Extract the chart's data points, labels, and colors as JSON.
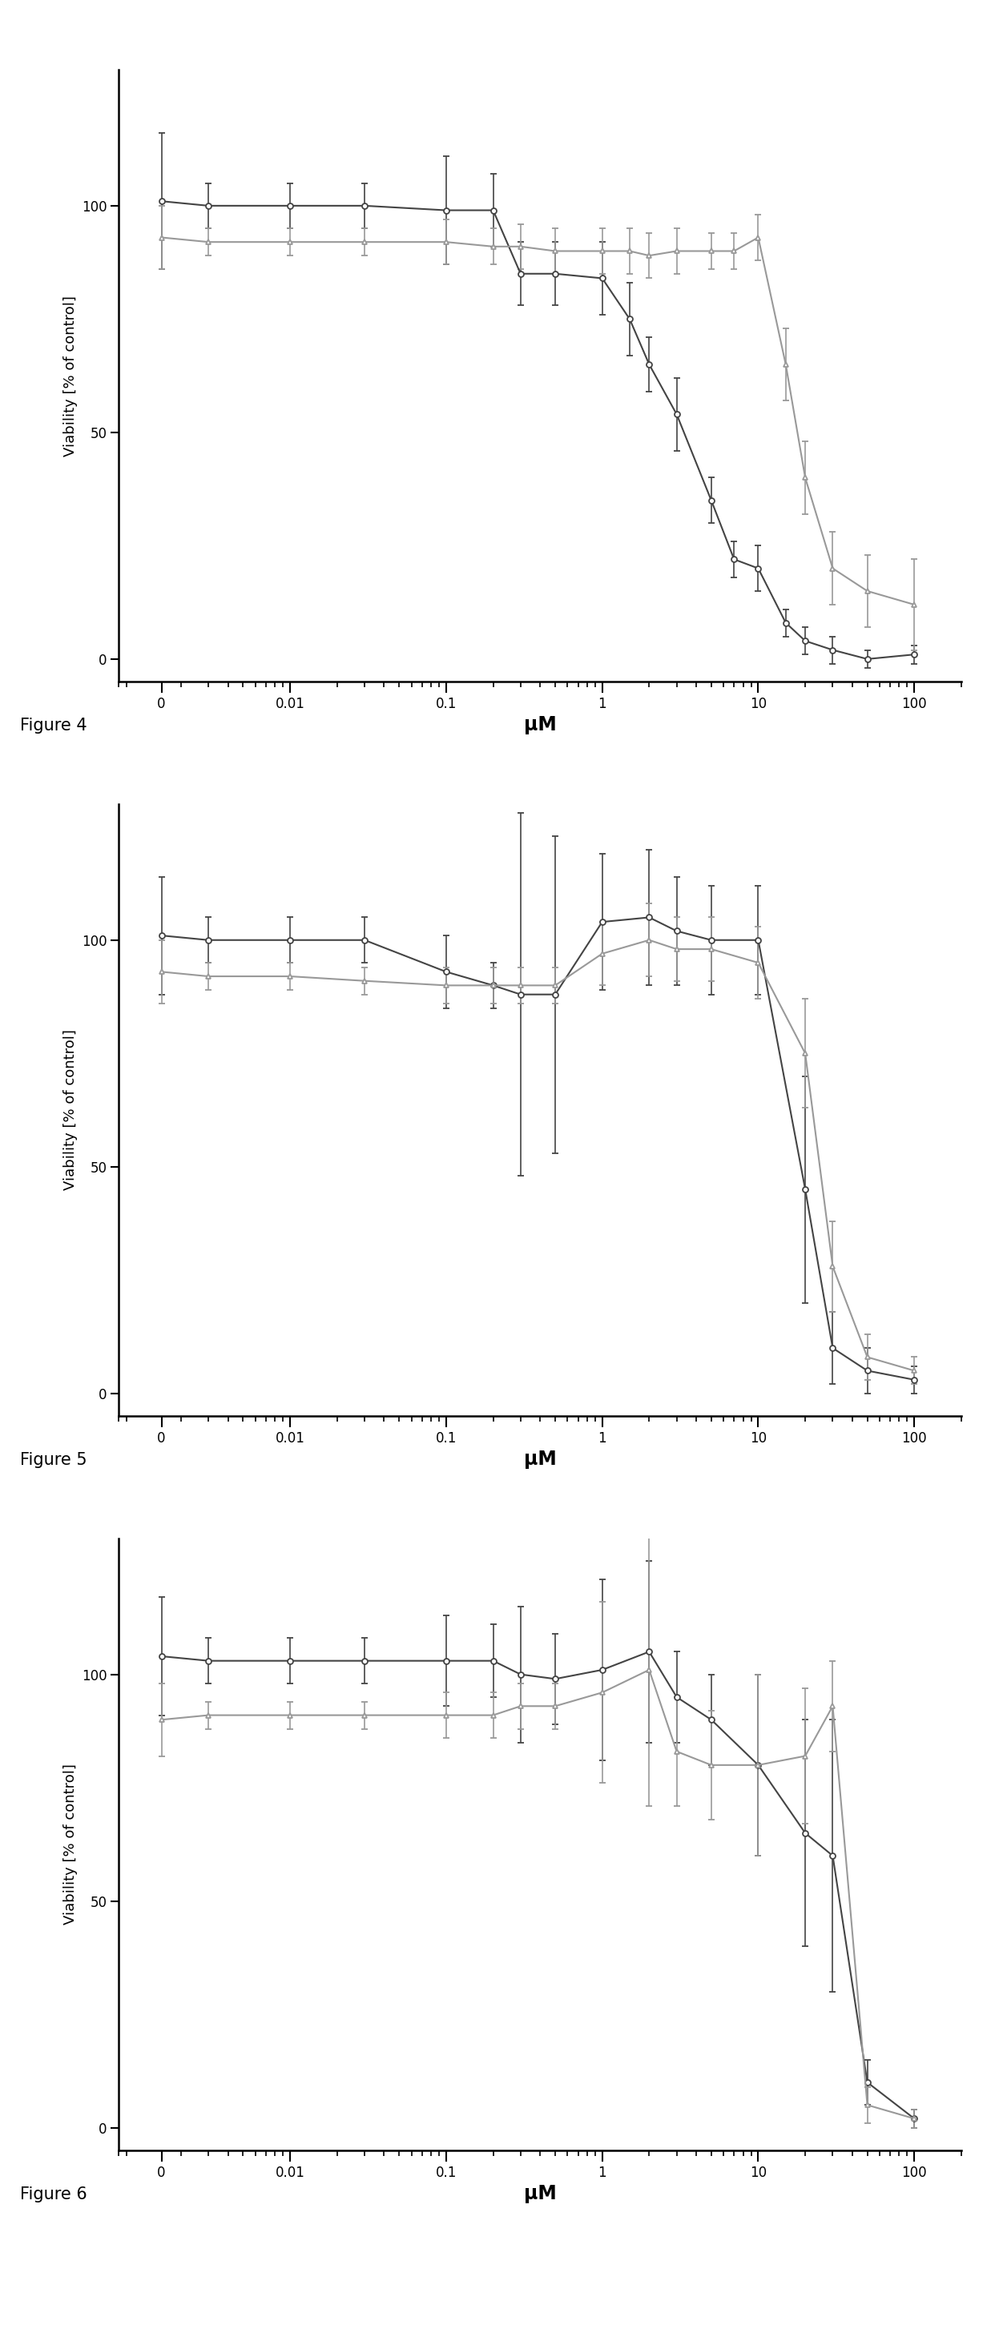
{
  "figures": [
    {
      "label": "Figure 4",
      "series": [
        {
          "marker": "o",
          "color": "#444444",
          "x": [
            0,
            0.003,
            0.01,
            0.03,
            0.1,
            0.2,
            0.3,
            0.5,
            1.0,
            1.5,
            2.0,
            3.0,
            5.0,
            7.0,
            10.0,
            15.0,
            20.0,
            30.0,
            50.0,
            100.0
          ],
          "y": [
            101,
            100,
            100,
            100,
            99,
            99,
            85,
            85,
            84,
            75,
            65,
            54,
            35,
            22,
            20,
            8,
            4,
            2,
            0,
            1
          ],
          "yerr": [
            15,
            5,
            5,
            5,
            12,
            8,
            7,
            7,
            8,
            8,
            6,
            8,
            5,
            4,
            5,
            3,
            3,
            3,
            2,
            2
          ]
        },
        {
          "marker": "^",
          "color": "#999999",
          "x": [
            0,
            0.003,
            0.01,
            0.03,
            0.1,
            0.2,
            0.3,
            0.5,
            1.0,
            1.5,
            2.0,
            3.0,
            5.0,
            7.0,
            10.0,
            15.0,
            20.0,
            30.0,
            50.0,
            100.0
          ],
          "y": [
            93,
            92,
            92,
            92,
            92,
            91,
            91,
            90,
            90,
            90,
            89,
            90,
            90,
            90,
            93,
            65,
            40,
            20,
            15,
            12
          ],
          "yerr": [
            7,
            3,
            3,
            3,
            5,
            4,
            5,
            5,
            5,
            5,
            5,
            5,
            4,
            4,
            5,
            8,
            8,
            8,
            8,
            10
          ]
        }
      ]
    },
    {
      "label": "Figure 5",
      "series": [
        {
          "marker": "o",
          "color": "#444444",
          "x": [
            0,
            0.003,
            0.01,
            0.03,
            0.1,
            0.2,
            0.3,
            0.5,
            1.0,
            2.0,
            3.0,
            5.0,
            10.0,
            20.0,
            30.0,
            50.0,
            100.0
          ],
          "y": [
            101,
            100,
            100,
            100,
            93,
            90,
            88,
            88,
            104,
            105,
            102,
            100,
            100,
            45,
            10,
            5,
            3
          ],
          "yerr": [
            13,
            5,
            5,
            5,
            8,
            5,
            40,
            35,
            15,
            15,
            12,
            12,
            12,
            25,
            8,
            5,
            3
          ]
        },
        {
          "marker": "^",
          "color": "#999999",
          "x": [
            0,
            0.003,
            0.01,
            0.03,
            0.1,
            0.2,
            0.3,
            0.5,
            1.0,
            2.0,
            3.0,
            5.0,
            10.0,
            20.0,
            30.0,
            50.0,
            100.0
          ],
          "y": [
            93,
            92,
            92,
            91,
            90,
            90,
            90,
            90,
            97,
            100,
            98,
            98,
            95,
            75,
            28,
            8,
            5
          ],
          "yerr": [
            7,
            3,
            3,
            3,
            4,
            4,
            4,
            4,
            7,
            8,
            7,
            7,
            8,
            12,
            10,
            5,
            3
          ]
        }
      ]
    },
    {
      "label": "Figure 6",
      "series": [
        {
          "marker": "o",
          "color": "#444444",
          "x": [
            0,
            0.003,
            0.01,
            0.03,
            0.1,
            0.2,
            0.3,
            0.5,
            1.0,
            2.0,
            3.0,
            5.0,
            10.0,
            20.0,
            30.0,
            50.0,
            100.0
          ],
          "y": [
            104,
            103,
            103,
            103,
            103,
            103,
            100,
            99,
            101,
            105,
            95,
            90,
            80,
            65,
            60,
            10,
            2
          ],
          "yerr": [
            13,
            5,
            5,
            5,
            10,
            8,
            15,
            10,
            20,
            20,
            10,
            10,
            20,
            25,
            30,
            5,
            2
          ]
        },
        {
          "marker": "^",
          "color": "#999999",
          "x": [
            0,
            0.003,
            0.01,
            0.03,
            0.1,
            0.2,
            0.3,
            0.5,
            1.0,
            2.0,
            3.0,
            5.0,
            10.0,
            20.0,
            30.0,
            50.0,
            100.0
          ],
          "y": [
            90,
            91,
            91,
            91,
            91,
            91,
            93,
            93,
            96,
            101,
            83,
            80,
            80,
            82,
            93,
            5,
            2
          ],
          "yerr": [
            8,
            3,
            3,
            3,
            5,
            5,
            5,
            5,
            20,
            30,
            12,
            12,
            20,
            15,
            10,
            4,
            2
          ]
        }
      ]
    }
  ],
  "ylabel": "Viability [% of control]",
  "xlabel": "μM",
  "ylim": [
    -5,
    130
  ],
  "yticks": [
    0,
    50,
    100
  ],
  "xtick_labels": [
    "0",
    "0.01",
    "0.1",
    "1",
    "10",
    "100"
  ],
  "background_color": "#ffffff",
  "linewidth": 1.5,
  "markersize": 5,
  "capsize": 3,
  "elinewidth": 1.2,
  "figure_label_fontsize": 15,
  "axis_label_fontsize": 13,
  "tick_label_fontsize": 12
}
